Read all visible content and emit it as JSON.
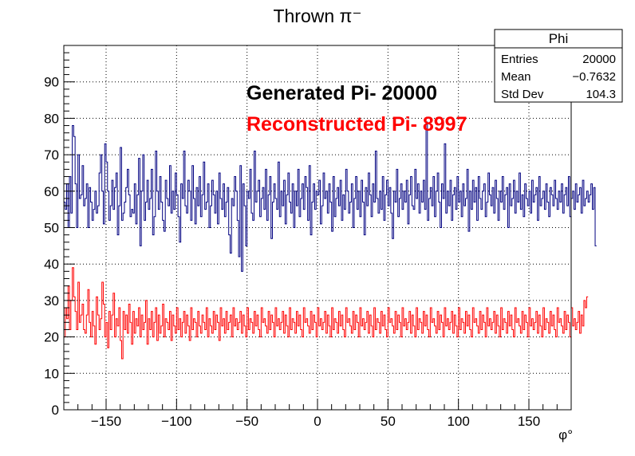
{
  "chart_data": {
    "type": "histogram",
    "title": "Thrown π⁻",
    "xlabel": "φ°",
    "ylabel": "",
    "xlim": [
      -180,
      180
    ],
    "ylim": [
      0,
      100
    ],
    "x_ticks": [
      -150,
      -100,
      -50,
      0,
      50,
      100,
      150
    ],
    "y_ticks": [
      0,
      10,
      20,
      30,
      40,
      50,
      60,
      70,
      80,
      90
    ],
    "grid": true,
    "bins": 360,
    "series": [
      {
        "name": "Generated Pi- 20000",
        "color": "#000080",
        "values": [
          57,
          55,
          62,
          50,
          64,
          54,
          78,
          75,
          62,
          50,
          70,
          58,
          59,
          67,
          56,
          58,
          62,
          50,
          61,
          57,
          52,
          55,
          60,
          54,
          56,
          65,
          70,
          60,
          51,
          73,
          68,
          60,
          52,
          56,
          63,
          55,
          61,
          65,
          48,
          56,
          72,
          52,
          54,
          57,
          61,
          66,
          59,
          53,
          55,
          54,
          62,
          51,
          59,
          69,
          45,
          60,
          70,
          52,
          57,
          63,
          55,
          58,
          66,
          48,
          53,
          71,
          60,
          55,
          64,
          57,
          52,
          49,
          63,
          58,
          56,
          67,
          54,
          60,
          55,
          65,
          59,
          53,
          46,
          62,
          58,
          71,
          56,
          54,
          63,
          60,
          52,
          67,
          58,
          51,
          61,
          56,
          64,
          53,
          59,
          68,
          55,
          57,
          62,
          50,
          56,
          63,
          59,
          54,
          60,
          51,
          65,
          58,
          55,
          62,
          53,
          57,
          61,
          48,
          43,
          58,
          56,
          64,
          60,
          52,
          42,
          67,
          38,
          62,
          56,
          45,
          60,
          58,
          66,
          54,
          52,
          71,
          57,
          60,
          63,
          53,
          58,
          61,
          55,
          66,
          52,
          59,
          64,
          47,
          57,
          62,
          58,
          55,
          68,
          53,
          60,
          56,
          63,
          51,
          59,
          65,
          57,
          54,
          62,
          50,
          60,
          56,
          66,
          53,
          58,
          62,
          55,
          64,
          61,
          52,
          67,
          48,
          57,
          62,
          55,
          60,
          59,
          63,
          51,
          56,
          65,
          58,
          60,
          54,
          62,
          57,
          49,
          64,
          53,
          58,
          61,
          56,
          63,
          52,
          59,
          55,
          66,
          60,
          54,
          57,
          62,
          50,
          58,
          64,
          55,
          60,
          53,
          63,
          57,
          48,
          61,
          56,
          65,
          59,
          53,
          62,
          57,
          71,
          58,
          54,
          60,
          55,
          64,
          52,
          59,
          63,
          56,
          61,
          54,
          47,
          60,
          57,
          66,
          53,
          58,
          62,
          55,
          60,
          57,
          63,
          51,
          59,
          64,
          56,
          55,
          66,
          58,
          62,
          54,
          60,
          57,
          63,
          55,
          79,
          52,
          58,
          61,
          56,
          64,
          53,
          60,
          65,
          57,
          50,
          62,
          58,
          73,
          54,
          60,
          56,
          63,
          52,
          59,
          61,
          55,
          64,
          57,
          60,
          53,
          62,
          56,
          58,
          66,
          49,
          60,
          55,
          63,
          57,
          61,
          52,
          64,
          58,
          55,
          60,
          62,
          53,
          57,
          65,
          59,
          56,
          61,
          54,
          63,
          58,
          52,
          60,
          57,
          64,
          55,
          59,
          61,
          50,
          62,
          56,
          58,
          63,
          54,
          60,
          57,
          65,
          55,
          59,
          53,
          62,
          58,
          56,
          60,
          54,
          63,
          57,
          59,
          61,
          52,
          64,
          56,
          58,
          60,
          55,
          62,
          57,
          53,
          61,
          59,
          56,
          63,
          58,
          55,
          60,
          57,
          62,
          54,
          59,
          61,
          56,
          64,
          53,
          58,
          60,
          55,
          62,
          57,
          59,
          61,
          54,
          63,
          56,
          58,
          60,
          57,
          59,
          62,
          55,
          61,
          45
        ]
      },
      {
        "name": "Reconstructed Pi- 8997",
        "color": "#ff0000",
        "values": [
          20,
          28,
          25,
          34,
          22,
          30,
          39,
          31,
          27,
          22,
          35,
          24,
          26,
          29,
          22,
          21,
          26,
          33,
          24,
          20,
          27,
          23,
          18,
          31,
          26,
          22,
          25,
          35,
          29,
          20,
          24,
          17,
          27,
          22,
          26,
          32,
          20,
          25,
          23,
          28,
          19,
          14,
          27,
          22,
          26,
          21,
          29,
          24,
          18,
          27,
          21,
          25,
          23,
          28,
          20,
          26,
          22,
          24,
          30,
          18,
          25,
          22,
          27,
          20,
          24,
          28,
          19,
          26,
          21,
          23,
          29,
          20,
          25,
          24,
          22,
          27,
          19,
          26,
          23,
          21,
          28,
          22,
          25,
          20,
          24,
          27,
          21,
          26,
          23,
          19,
          28,
          22,
          25,
          24,
          20,
          27,
          23,
          21,
          26,
          24,
          22,
          28,
          20,
          25,
          23,
          21,
          27,
          22,
          26,
          24,
          19,
          28,
          23,
          25,
          21,
          27,
          22,
          24,
          26,
          20,
          28,
          23,
          25,
          22,
          24,
          27,
          21,
          26,
          23,
          20,
          28,
          22,
          25,
          24,
          21,
          27,
          23,
          26,
          22,
          20,
          28,
          24,
          25,
          23,
          21,
          27,
          22,
          26,
          24,
          20,
          28,
          23,
          25,
          22,
          24,
          27,
          21,
          26,
          23,
          20,
          28,
          22,
          25,
          24,
          21,
          27,
          23,
          26,
          22,
          20,
          28,
          24,
          25,
          23,
          21,
          27,
          22,
          26,
          24,
          20,
          28,
          23,
          25,
          22,
          24,
          27,
          21,
          26,
          23,
          20,
          28,
          22,
          25,
          24,
          21,
          27,
          23,
          26,
          22,
          20,
          28,
          24,
          25,
          23,
          21,
          27,
          22,
          26,
          24,
          20,
          28,
          23,
          25,
          22,
          24,
          27,
          21,
          26,
          23,
          20,
          28,
          22,
          25,
          24,
          21,
          27,
          23,
          26,
          22,
          20,
          28,
          24,
          25,
          23,
          21,
          27,
          22,
          26,
          24,
          20,
          28,
          23,
          25,
          22,
          24,
          27,
          21,
          26,
          23,
          20,
          28,
          22,
          25,
          24,
          21,
          27,
          23,
          26,
          22,
          20,
          28,
          24,
          25,
          23,
          21,
          27,
          22,
          26,
          24,
          20,
          28,
          23,
          25,
          22,
          24,
          27,
          21,
          26,
          23,
          20,
          28,
          22,
          25,
          24,
          21,
          27,
          23,
          26,
          22,
          20,
          28,
          24,
          25,
          23,
          21,
          27,
          22,
          26,
          24,
          20,
          28,
          23,
          25,
          22,
          24,
          27,
          21,
          26,
          23,
          20,
          28,
          22,
          25,
          24,
          21,
          27,
          23,
          26,
          22,
          20,
          28,
          24,
          25,
          23,
          21,
          27,
          22,
          26,
          24,
          20,
          28,
          23,
          25,
          22,
          24,
          27,
          21,
          26,
          23,
          20,
          28,
          22,
          25,
          24,
          21,
          27,
          23,
          26,
          22,
          20,
          28,
          24,
          25,
          23,
          21,
          27,
          22,
          26,
          24,
          20,
          28,
          23,
          25,
          22,
          24,
          27,
          21,
          26,
          23,
          30,
          28,
          31
        ]
      }
    ],
    "annotations": [
      {
        "text": "Generated Pi- 20000",
        "color": "#000000"
      },
      {
        "text": "Reconstructed Pi- 8997",
        "color": "#ff0000"
      }
    ],
    "stats_box": {
      "title": "Phi",
      "rows": [
        {
          "label": "Entries",
          "value": "20000"
        },
        {
          "label": "Mean",
          "value": "−0.7632"
        },
        {
          "label": "Std Dev",
          "value": "104.3"
        }
      ]
    }
  }
}
